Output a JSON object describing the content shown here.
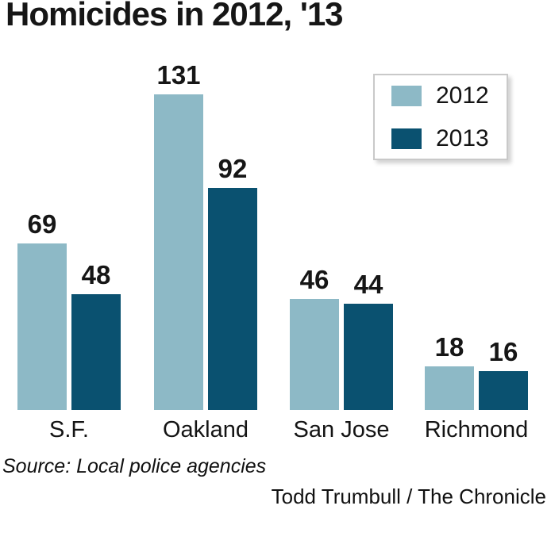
{
  "chart_data": {
    "type": "bar",
    "title": "Homicides in 2012, '13",
    "categories": [
      "S.F.",
      "Oakland",
      "San Jose",
      "Richmond"
    ],
    "series": [
      {
        "name": "2012",
        "color": "#8db9c6",
        "values": [
          69,
          131,
          46,
          18
        ]
      },
      {
        "name": "2013",
        "color": "#0a5170",
        "values": [
          48,
          92,
          44,
          16
        ]
      }
    ],
    "ylim": [
      0,
      131
    ],
    "grid": false,
    "value_labels": true,
    "legend_position": "top-right",
    "source": "Source: Local police agencies",
    "credit": "Todd Trumbull / The Chronicle"
  }
}
